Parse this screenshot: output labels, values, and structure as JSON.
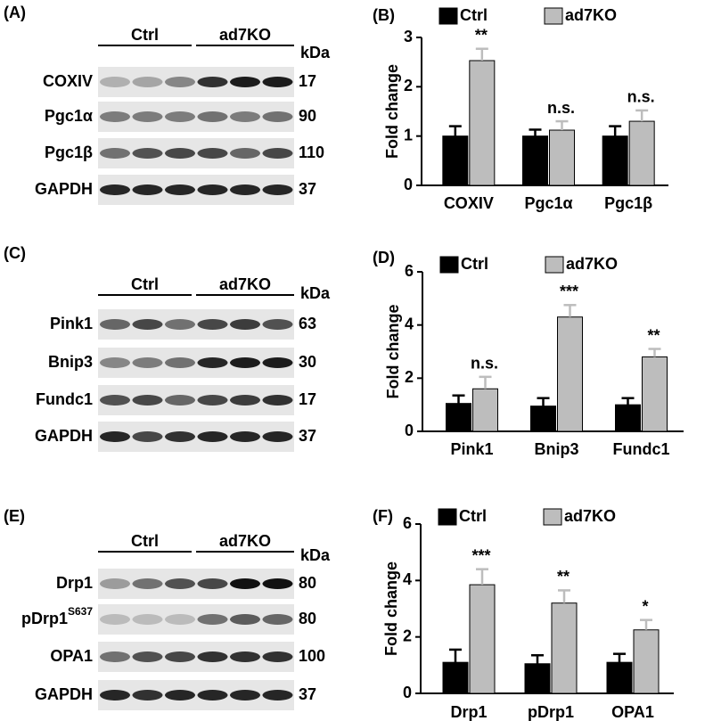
{
  "blots": [
    {
      "panel": "(A)",
      "groups": [
        "Ctrl",
        "ad7KO"
      ],
      "unit": "kDa",
      "rows": [
        {
          "label": "COXIV",
          "kda": 17
        },
        {
          "label": "Pgc1α",
          "kda": 90
        },
        {
          "label": "Pgc1β",
          "kda": 110
        },
        {
          "label": "GAPDH",
          "kda": 37
        }
      ]
    },
    {
      "panel": "(C)",
      "groups": [
        "Ctrl",
        "ad7KO"
      ],
      "unit": "kDa",
      "rows": [
        {
          "label": "Pink1",
          "kda": 63
        },
        {
          "label": "Bnip3",
          "kda": 30
        },
        {
          "label": "Fundc1",
          "kda": 17
        },
        {
          "label": "GAPDH",
          "kda": 37
        }
      ]
    },
    {
      "panel": "(E)",
      "groups": [
        "Ctrl",
        "ad7KO"
      ],
      "unit": "kDa",
      "rows": [
        {
          "label": "Drp1",
          "kda": 80
        },
        {
          "label": "pDrp1",
          "sup": "S637",
          "kda": 80
        },
        {
          "label": "OPA1",
          "kda": 100
        },
        {
          "label": "GAPDH",
          "kda": 37
        }
      ]
    }
  ],
  "chart_data": [
    {
      "type": "bar",
      "panel": "(B)",
      "ylabel": "Fold change",
      "categories": [
        "COXIV",
        "Pgc1α",
        "Pgc1β"
      ],
      "series": [
        {
          "name": "Ctrl",
          "color": "#000000",
          "values": [
            1,
            1,
            1
          ],
          "errors": [
            0.2,
            0.13,
            0.2
          ]
        },
        {
          "name": "ad7KO",
          "color": "#bdbdbd",
          "values": [
            2.53,
            1.12,
            1.3
          ],
          "errors": [
            0.24,
            0.18,
            0.22
          ]
        }
      ],
      "annotations": [
        "**",
        "n.s.",
        "n.s."
      ],
      "ylim": [
        0,
        3
      ],
      "yticks": [
        0,
        1,
        2,
        3
      ],
      "legend": "top"
    },
    {
      "type": "bar",
      "panel": "(D)",
      "ylabel": "Fold change",
      "categories": [
        "Pink1",
        "Bnip3",
        "Fundc1"
      ],
      "series": [
        {
          "name": "Ctrl",
          "color": "#000000",
          "values": [
            1.05,
            0.95,
            1.0
          ],
          "errors": [
            0.3,
            0.3,
            0.25
          ]
        },
        {
          "name": "ad7KO",
          "color": "#bdbdbd",
          "values": [
            1.6,
            4.3,
            2.8
          ],
          "errors": [
            0.45,
            0.45,
            0.3
          ]
        }
      ],
      "annotations": [
        "n.s.",
        "***",
        "**"
      ],
      "ylim": [
        0,
        6
      ],
      "yticks": [
        0,
        2,
        4,
        6
      ],
      "legend": "top"
    },
    {
      "type": "bar",
      "panel": "(F)",
      "ylabel": "Fold change",
      "categories": [
        "Drp1",
        "pDrp1",
        "OPA1"
      ],
      "series": [
        {
          "name": "Ctrl",
          "color": "#000000",
          "values": [
            1.1,
            1.05,
            1.1
          ],
          "errors": [
            0.45,
            0.3,
            0.3
          ]
        },
        {
          "name": "ad7KO",
          "color": "#bdbdbd",
          "values": [
            3.85,
            3.2,
            2.25
          ],
          "errors": [
            0.55,
            0.45,
            0.35
          ]
        }
      ],
      "annotations": [
        "***",
        "**",
        "*"
      ],
      "ylim": [
        0,
        6
      ],
      "yticks": [
        0,
        2,
        4,
        6
      ],
      "legend": "top"
    }
  ]
}
